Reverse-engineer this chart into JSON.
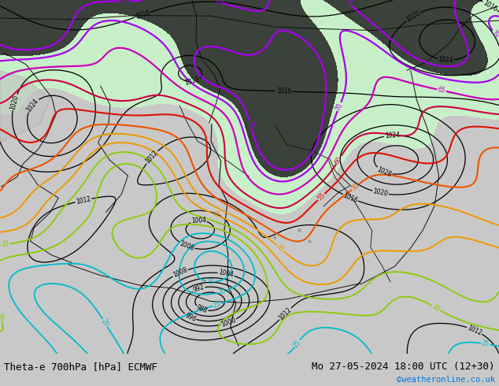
{
  "title_left": "Theta-e 700hPa [hPa] ECMWF",
  "title_right": "Mo 27-05-2024 18:00 UTC (12+30)",
  "credit": "©weatheronline.co.uk",
  "bg_color": "#f0eff0",
  "bottom_bg": "#c8c8c8",
  "pressure_color": "#000000",
  "theta_colors": {
    "10": "#00cccc",
    "15": "#00cccc",
    "20": "#00aadd",
    "25": "#00bbcc",
    "30": "#22cc44",
    "35": "#88cc00",
    "40": "#ddaa00",
    "45": "#ee8800",
    "50": "#ee5500",
    "55": "#dd2200",
    "60": "#cc0066",
    "65": "#cc00cc",
    "70": "#aa00ff",
    "75": "#8800ff"
  },
  "green_fill": "#c8f0c8",
  "dark_fill": "#111111",
  "credit_color": "#0077dd"
}
